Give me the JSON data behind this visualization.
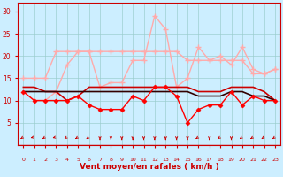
{
  "x": [
    0,
    1,
    2,
    3,
    4,
    5,
    6,
    7,
    8,
    9,
    10,
    11,
    12,
    13,
    14,
    15,
    16,
    17,
    18,
    19,
    20,
    21,
    22,
    23
  ],
  "line_rafale_max": [
    12,
    10,
    10,
    12,
    18,
    21,
    21,
    13,
    14,
    14,
    19,
    19,
    29,
    26,
    13,
    15,
    22,
    19,
    20,
    18,
    22,
    17,
    16,
    17
  ],
  "line_rafale_avg": [
    15,
    15,
    15,
    21,
    21,
    21,
    21,
    21,
    21,
    21,
    21,
    21,
    21,
    21,
    21,
    19,
    19,
    19,
    19,
    19,
    19,
    16,
    16,
    17
  ],
  "line_vent_avg": [
    13,
    13,
    12,
    12,
    10,
    11,
    13,
    13,
    13,
    13,
    13,
    13,
    13,
    13,
    13,
    13,
    12,
    12,
    12,
    13,
    13,
    13,
    12,
    10
  ],
  "line_vent_min": [
    12,
    10,
    10,
    10,
    10,
    11,
    9,
    8,
    8,
    8,
    11,
    10,
    13,
    13,
    11,
    5,
    8,
    9,
    9,
    12,
    9,
    11,
    10,
    10
  ],
  "line_dark": [
    12,
    12,
    12,
    12,
    12,
    12,
    12,
    12,
    12,
    12,
    12,
    12,
    12,
    12,
    12,
    12,
    11,
    11,
    11,
    12,
    12,
    11,
    11,
    10
  ],
  "bg_color": "#cceeff",
  "grid_color": "#99cccc",
  "color_rafale_max": "#ffaaaa",
  "color_rafale_avg": "#ffaaaa",
  "color_vent_avg": "#cc0000",
  "color_vent_min": "#ff0000",
  "color_dark": "#330000",
  "arrow_color": "#cc0000",
  "xlabel": "Vent moyen/en rafales ( km/h )",
  "ylim": [
    0,
    32
  ],
  "yticks": [
    5,
    10,
    15,
    20,
    25,
    30
  ],
  "xlim": [
    -0.5,
    23.5
  ]
}
